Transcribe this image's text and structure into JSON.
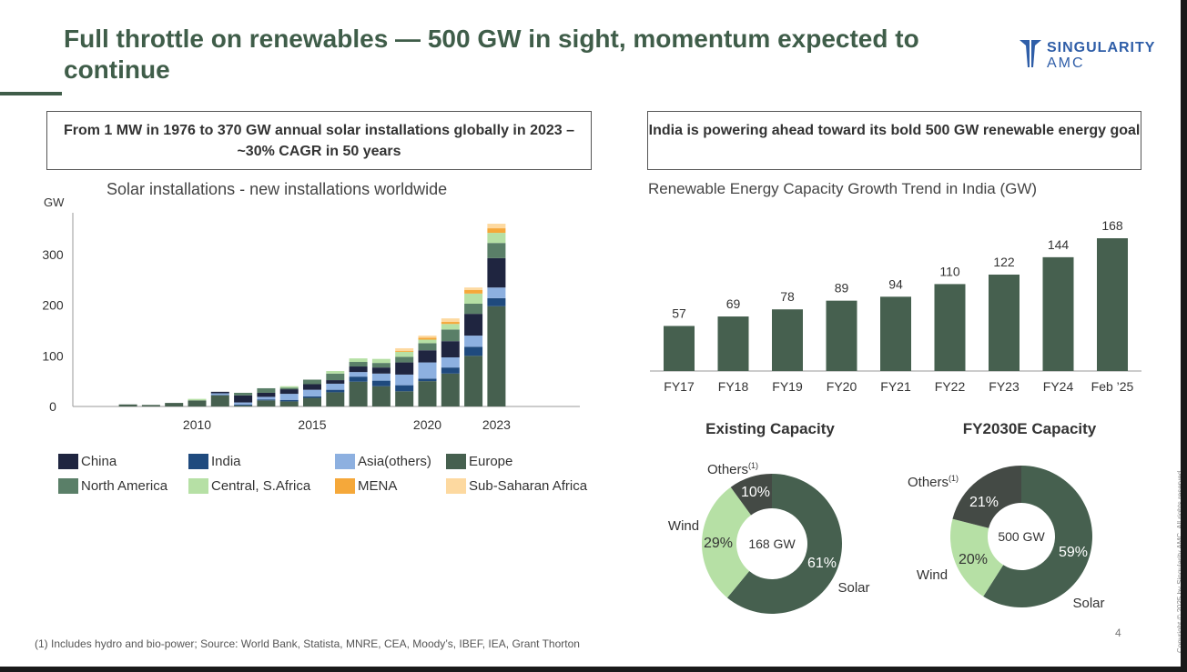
{
  "header": {
    "title": "Full throttle on renewables — 500 GW in sight, momentum expected to continue",
    "logo_line1": "SINGULARITY",
    "logo_line2": "AMC"
  },
  "left_panel": {
    "headline": "From 1 MW in 1976 to 370 GW annual solar installations globally in 2023 – ~30% CAGR in 50 years"
  },
  "right_panel": {
    "headline": "India is powering ahead toward its bold 500 GW renewable energy goal"
  },
  "colors": {
    "China": "#1f2540",
    "India": "#1f4a7e",
    "Asia(others)": "#8db0e0",
    "Europe": "#46604f",
    "North America": "#5a7f68",
    "Central, S.Africa": "#b6e0a5",
    "MENA": "#f5a83a",
    "Sub-Saharan Africa": "#fdd9a0",
    "bar": "#46604f",
    "solar": "#46604f",
    "wind": "#b6e0a5",
    "others": "#444a45"
  },
  "chart_data": [
    {
      "type": "bar",
      "stacked": true,
      "title": "Solar installations  - new installations worldwide",
      "ylabel": "GW",
      "ylim": [
        0,
        380
      ],
      "yticks": [
        "0",
        "100",
        "200",
        "300"
      ],
      "ytick_values": [
        0,
        100,
        200,
        300
      ],
      "xtick_labels": [
        "2010",
        "2015",
        "2020",
        "2023"
      ],
      "categories": [
        2005,
        2006,
        2007,
        2008,
        2009,
        2010,
        2011,
        2012,
        2013,
        2014,
        2015,
        2016,
        2017,
        2018,
        2019,
        2020,
        2021,
        2022,
        2023
      ],
      "series": [
        {
          "name": "Europe",
          "values": [
            0,
            0,
            4,
            3,
            7,
            12,
            22,
            2,
            12,
            10,
            17,
            28,
            49,
            40,
            30,
            50,
            65,
            100,
            198
          ]
        },
        {
          "name": "India",
          "values": [
            0,
            0,
            0,
            0,
            0,
            0,
            1,
            2,
            2,
            3,
            3,
            5,
            10,
            11,
            12,
            5,
            12,
            18,
            16
          ]
        },
        {
          "name": "Asia(others)",
          "values": [
            0,
            0,
            0,
            0,
            0,
            0,
            3,
            4,
            5,
            12,
            13,
            12,
            9,
            14,
            21,
            32,
            20,
            22,
            21
          ]
        },
        {
          "name": "China",
          "values": [
            0,
            0,
            0,
            0,
            0,
            0,
            3,
            14,
            8,
            9,
            11,
            7,
            11,
            12,
            24,
            24,
            32,
            43,
            58
          ]
        },
        {
          "name": "North America",
          "values": [
            0,
            0,
            0,
            0,
            0,
            0,
            0,
            5,
            9,
            3,
            9,
            13,
            9,
            9,
            11,
            14,
            23,
            20,
            30
          ]
        },
        {
          "name": "Central, S.Africa",
          "values": [
            0,
            0,
            0,
            0,
            0,
            3,
            0,
            0,
            0,
            3,
            0,
            5,
            7,
            8,
            10,
            7,
            11,
            20,
            20
          ]
        },
        {
          "name": "MENA",
          "values": [
            0,
            0,
            0,
            0,
            0,
            0,
            0,
            0,
            0,
            0,
            0,
            0,
            0,
            0,
            2,
            4,
            4,
            7,
            9
          ]
        },
        {
          "name": "Sub-Saharan Africa",
          "values": [
            0,
            0,
            0,
            0,
            0,
            0,
            0,
            0,
            0,
            0,
            0,
            0,
            0,
            0,
            5,
            4,
            7,
            5,
            9
          ]
        }
      ],
      "legend": [
        "China",
        "India",
        "Asia(others)",
        "Europe",
        "North America",
        "Central, S.Africa",
        "MENA",
        "Sub-Saharan Africa"
      ],
      "legend_placement": "bottom"
    },
    {
      "type": "bar",
      "title": "Renewable Energy Capacity Growth Trend in India (GW)",
      "categories": [
        "FY17",
        "FY18",
        "FY19",
        "FY20",
        "FY21",
        "FY22",
        "FY23",
        "FY24",
        "Feb ’25"
      ],
      "values": [
        57,
        69,
        78,
        89,
        94,
        110,
        122,
        144,
        168
      ],
      "data_labels": [
        "57",
        "69",
        "78",
        "89",
        "94",
        "110",
        "122",
        "144",
        "168"
      ],
      "ylim": [
        0,
        180
      ]
    },
    {
      "type": "pie",
      "title": "Existing Capacity",
      "center_label": "168 GW",
      "slices": [
        {
          "name": "Solar",
          "value": 61,
          "label": "61%"
        },
        {
          "name": "Wind",
          "value": 29,
          "label": "29%"
        },
        {
          "name": "Others",
          "sup": "(1)",
          "value": 10,
          "label": "10%"
        }
      ]
    },
    {
      "type": "pie",
      "title": "FY2030E Capacity",
      "center_label": "500 GW",
      "slices": [
        {
          "name": "Solar",
          "value": 59,
          "label": "59%"
        },
        {
          "name": "Wind",
          "value": 20,
          "label": "20%"
        },
        {
          "name": "Others",
          "sup": "(1)",
          "value": 21,
          "label": "21%"
        }
      ]
    }
  ],
  "footer": {
    "footnote": "(1) Includes hydro and bio-power; Source: World Bank, Statista, MNRE, CEA, Moody’s, IBEF, IEA, Grant Thorton",
    "page_number": "4",
    "copyright": "Copyright © 2025 by Singularity AMC. All rights reserved."
  }
}
